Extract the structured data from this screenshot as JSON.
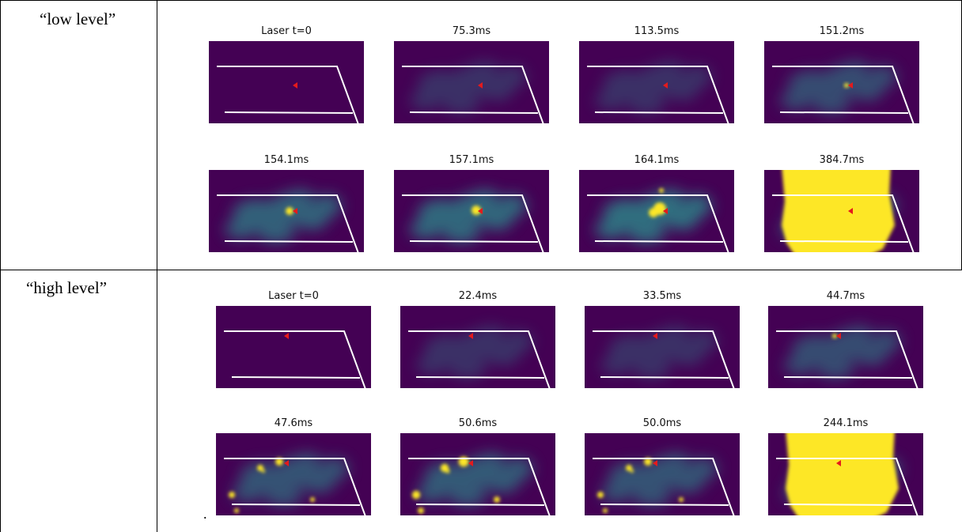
{
  "rows": [
    {
      "label": "“low level”",
      "panels": [
        {
          "title": "Laser t=0",
          "stage": "dark"
        },
        {
          "title": "75.3ms",
          "stage": "faint"
        },
        {
          "title": "113.5ms",
          "stage": "faint"
        },
        {
          "title": "151.2ms",
          "stage": "spot"
        },
        {
          "title": "154.1ms",
          "stage": "spot2"
        },
        {
          "title": "157.1ms",
          "stage": "spot3"
        },
        {
          "title": "164.1ms",
          "stage": "spot4"
        },
        {
          "title": "384.7ms",
          "stage": "saturated"
        }
      ]
    },
    {
      "label": "“high level”",
      "panels": [
        {
          "title": "Laser t=0",
          "stage": "dark"
        },
        {
          "title": "22.4ms",
          "stage": "faint"
        },
        {
          "title": "33.5ms",
          "stage": "faint"
        },
        {
          "title": "44.7ms",
          "stage": "spot"
        },
        {
          "title": "47.6ms",
          "stage": "multi"
        },
        {
          "title": "50.6ms",
          "stage": "multi2"
        },
        {
          "title": "50.0ms",
          "stage": "multi"
        },
        {
          "title": "244.1ms",
          "stage": "saturated"
        }
      ]
    }
  ],
  "trailing_mark": ".",
  "colors": {
    "background": "#440154",
    "glow": "#2a8a8a",
    "hot": "#fde725",
    "marker": "#e41a1c",
    "outline": "#ffffff"
  }
}
